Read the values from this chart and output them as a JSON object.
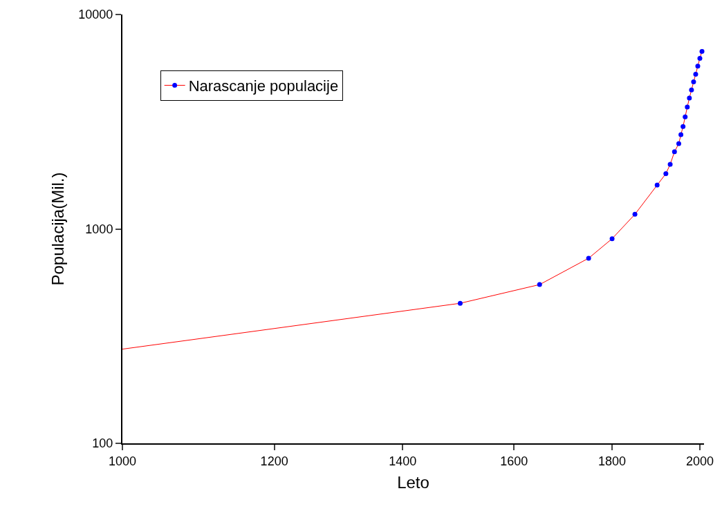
{
  "chart_data": {
    "type": "line",
    "xlabel": "Leto",
    "ylabel": "Populacija(Mil.)",
    "log": "xy",
    "xlim": [
      1000,
      2010
    ],
    "xticks": [
      1000,
      1200,
      1400,
      1600,
      1800,
      2000
    ],
    "ylim": [
      100,
      10000
    ],
    "yticks": [
      100,
      1000,
      10000
    ],
    "grid": false,
    "legend": "top left",
    "marker": "circle",
    "line_style": "solid",
    "series": [
      {
        "name": "Narascanje populacije",
        "color": "#ff0000",
        "colors": [
          "#0000ff",
          "#0000ff",
          "#0000ff",
          "#0000ff",
          "#0000ff",
          "#0000ff",
          "#0000ff",
          "#0000ff",
          "#0000ff",
          "#0000ff",
          "#0000ff",
          "#0000ff",
          "#0000ff",
          "#0000ff",
          "#0000ff",
          "#0000ff",
          "#0000ff",
          "#0000ff",
          "#0000ff",
          "#0000ff",
          "#0000ff",
          "#0000ff"
        ],
        "x": [
          1000,
          1500,
          1650,
          1750,
          1800,
          1850,
          1900,
          1920,
          1930,
          1940,
          1950,
          1955,
          1960,
          1965,
          1970,
          1975,
          1980,
          1985,
          1990,
          1995,
          2000,
          2005
        ],
        "values": [
          275,
          450,
          550,
          730,
          900,
          1170,
          1600,
          1810,
          2000,
          2290,
          2500,
          2750,
          3000,
          3330,
          3700,
          4080,
          4450,
          4850,
          5270,
          5740,
          6250,
          6730
        ]
      }
    ]
  }
}
